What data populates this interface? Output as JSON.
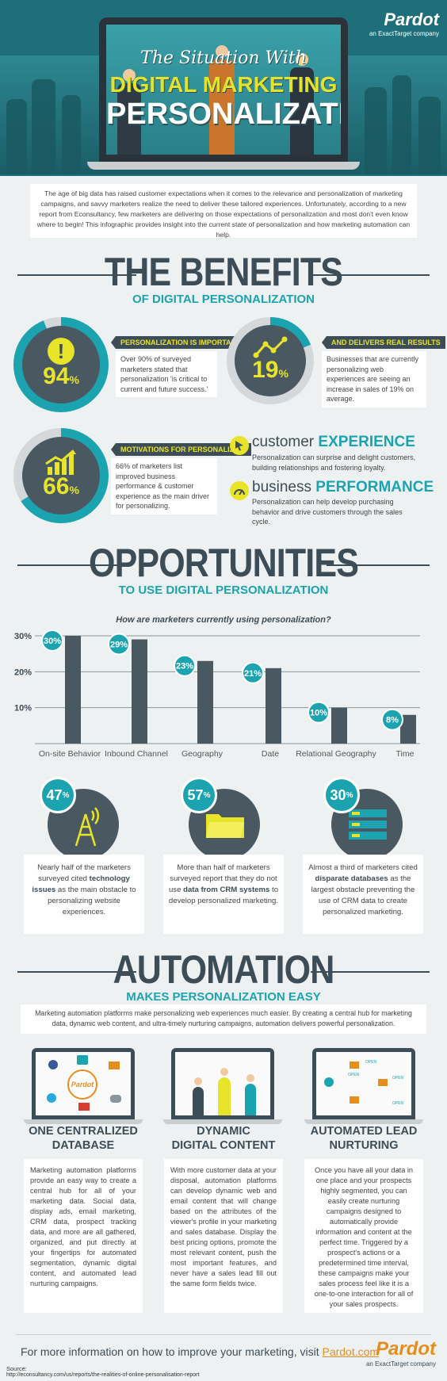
{
  "header": {
    "title_line1": "The Situation With",
    "title_line2": "DIGITAL MARKETING",
    "title_line3": "PERSONALIZATION",
    "brand_name": "Pardot",
    "brand_sub": "an ExactTarget company"
  },
  "intro": "The age of big data has raised customer expectations when it comes to the relevance and personalization of marketing campaigns, and savvy marketers realize the need to deliver these tailored experiences. Unfortunately, according to a new report from Econsultancy, few marketers are delivering on those expectations of personalization and most don't even know where to begin! This infographic provides insight into the current state of personalization and how marketing automation can help.",
  "benefits": {
    "heading": "THE BENEFITS",
    "subheading": "OF DIGITAL PERSONALIZATION",
    "stat1": {
      "value": "94",
      "unit": "%",
      "tag": "PERSONALIZATION IS IMPORTANT",
      "text": "Over 90% of surveyed marketers stated that personalization 'is critical to current and future success.'"
    },
    "stat2": {
      "value": "19",
      "unit": "%",
      "tag": "AND DELIVERS REAL RESULTS",
      "text": "Businesses that are currently personalizing web experiences are seeing an increase in sales of 19% on average."
    },
    "stat3": {
      "value": "66",
      "unit": "%",
      "tag": "MOTIVATIONS FOR PERSONALIZING",
      "text": "66% of marketers list improved business performance & customer experience as the main driver for personalizing."
    },
    "cx": {
      "prefix": "customer",
      "strong": "EXPERIENCE",
      "text": "Personalization can surprise and delight customers, building relationships and fostering loyalty."
    },
    "bp": {
      "prefix": "business",
      "strong": "PERFORMANCE",
      "text": "Personalization can help develop purchasing behavior and drive customers through the sales cycle."
    }
  },
  "opportunities": {
    "heading": "OPPORTUNITIES",
    "subheading": "TO USE DIGITAL PERSONALIZATION",
    "question": "How are marketers currently using personalization?"
  },
  "chart_data": {
    "type": "bar",
    "title": "How are marketers currently using personalization?",
    "categories": [
      "On-site Behavior",
      "Inbound Channel",
      "Geography",
      "Date",
      "Relational Geography",
      "Time"
    ],
    "values": [
      30,
      29,
      23,
      21,
      10,
      8
    ],
    "data_labels": [
      "30%",
      "29%",
      "23%",
      "21%",
      "10%",
      "8%"
    ],
    "y_ticks": [
      "10%",
      "20%",
      "30%"
    ],
    "ylim": [
      0,
      30
    ],
    "grid": true,
    "colors": {
      "bar": "#4a5861",
      "badge": "#1ca3b0",
      "grid": "#8a969c"
    }
  },
  "problems": [
    {
      "pct": "47",
      "unit": "%",
      "pre": "Nearly half of the marketers surveyed cited ",
      "bold": "technology issues",
      "post": " as the main obstacle to personalizing website experiences."
    },
    {
      "pct": "57",
      "unit": "%",
      "pre": "More than half of marketers surveyed report that they do not use ",
      "bold": "data from CRM systems",
      "post": " to develop personalized marketing."
    },
    {
      "pct": "30",
      "unit": "%",
      "pre": "Almost a third of marketers cited ",
      "bold": "disparate databases",
      "post": " as the largest obstacle preventing the use of CRM data to create personalized marketing."
    }
  ],
  "automation": {
    "heading": "AUTOMATION",
    "subheading": "MAKES PERSONALIZATION EASY",
    "intro": "Marketing automation platforms make personalizing web experiences much easier. By creating a central hub for marketing data, dynamic web content, and ultra-timely nurturing campaigns, automation delivers powerful personalization.",
    "cols": [
      {
        "title1": "ONE CENTRALIZED",
        "title2": "DATABASE",
        "text": "Marketing automation platforms provide an easy way to create a central hub for all of your marketing data. Social data, display ads, email marketing, CRM data, prospect tracking data, and more are all gathered, organized, and put directly at your fingertips for automated segmentation, dynamic digital content, and automated lead nurturing campaigns."
      },
      {
        "title1": "DYNAMIC",
        "title2": "DIGITAL CONTENT",
        "text": "With more customer data at your disposal, automation platforms can develop dynamic web and email content that will change based on the attributes of the viewer's profile in your marketing and sales database. Display the best pricing options, promote the most relevant content, push the most important features, and never have a sales lead fill out the same form fields twice."
      },
      {
        "title1": "AUTOMATED LEAD",
        "title2": "NURTURING",
        "text": "Once you have all your data in one place and your prospects highly segmented, you can easily create nurturing campaigns designed to automatically provide information and content at the perfect time. Triggered by a prospect's actions or a predetermined time interval, these campaigns make your sales process feel like it is a one-to-one interaction for all of your sales prospects."
      }
    ],
    "screen_labels": {
      "logo": "Pardot",
      "open": "OPEN",
      "open2": "OPEN",
      "open3": "OPEN",
      "open4": "OPEN"
    }
  },
  "footer": {
    "cta_prefix": "For more information on how to improve your marketing, visit ",
    "cta_link": "Pardot.com",
    "source_label": "Source:",
    "source_url": "http://econsultancy.com/us/reports/the-realities-of-online-personalisation-report",
    "brand_name": "Pardot",
    "brand_sub": "an ExactTarget company"
  }
}
